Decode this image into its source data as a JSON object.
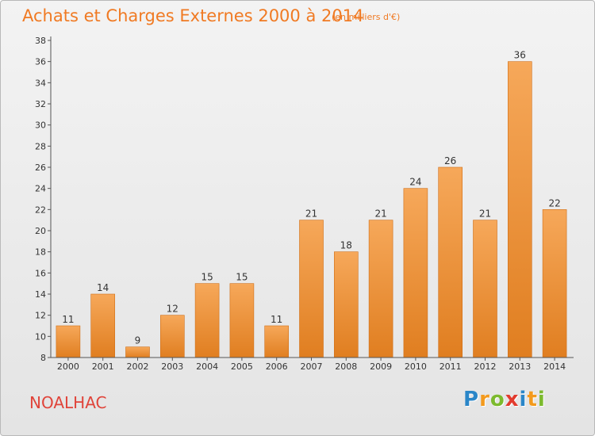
{
  "header": {
    "title": "Achats et Charges Externes 2000 à 2014",
    "subtitle": "(en milliers d'€)"
  },
  "footer": {
    "commune": "NOALHAC",
    "logo_letters": [
      "P",
      "r",
      "o",
      "x",
      "i",
      "t",
      "i"
    ],
    "logo_colors": [
      "#2a86c8",
      "#f39a1e",
      "#7cba2e",
      "#e23b2e",
      "#2a86c8",
      "#f39a1e",
      "#7cba2e"
    ]
  },
  "colors": {
    "bar_light": "#f6a85a",
    "bar_dark": "#e07e20",
    "accent": "#f07a23"
  },
  "chart_data": {
    "type": "bar",
    "title": "Achats et Charges Externes 2000 à 2014",
    "subtitle": "(en milliers d'€)",
    "categories": [
      "2000",
      "2001",
      "2002",
      "2003",
      "2004",
      "2005",
      "2006",
      "2007",
      "2008",
      "2009",
      "2010",
      "2011",
      "2012",
      "2013",
      "2014"
    ],
    "values": [
      11,
      14,
      9,
      12,
      15,
      15,
      11,
      21,
      18,
      21,
      24,
      26,
      21,
      36,
      22
    ],
    "ylim": [
      8,
      38
    ],
    "yticks": [
      8,
      10,
      12,
      14,
      16,
      18,
      20,
      22,
      24,
      26,
      28,
      30,
      32,
      34,
      36,
      38
    ],
    "grid": false,
    "legend": "none"
  }
}
